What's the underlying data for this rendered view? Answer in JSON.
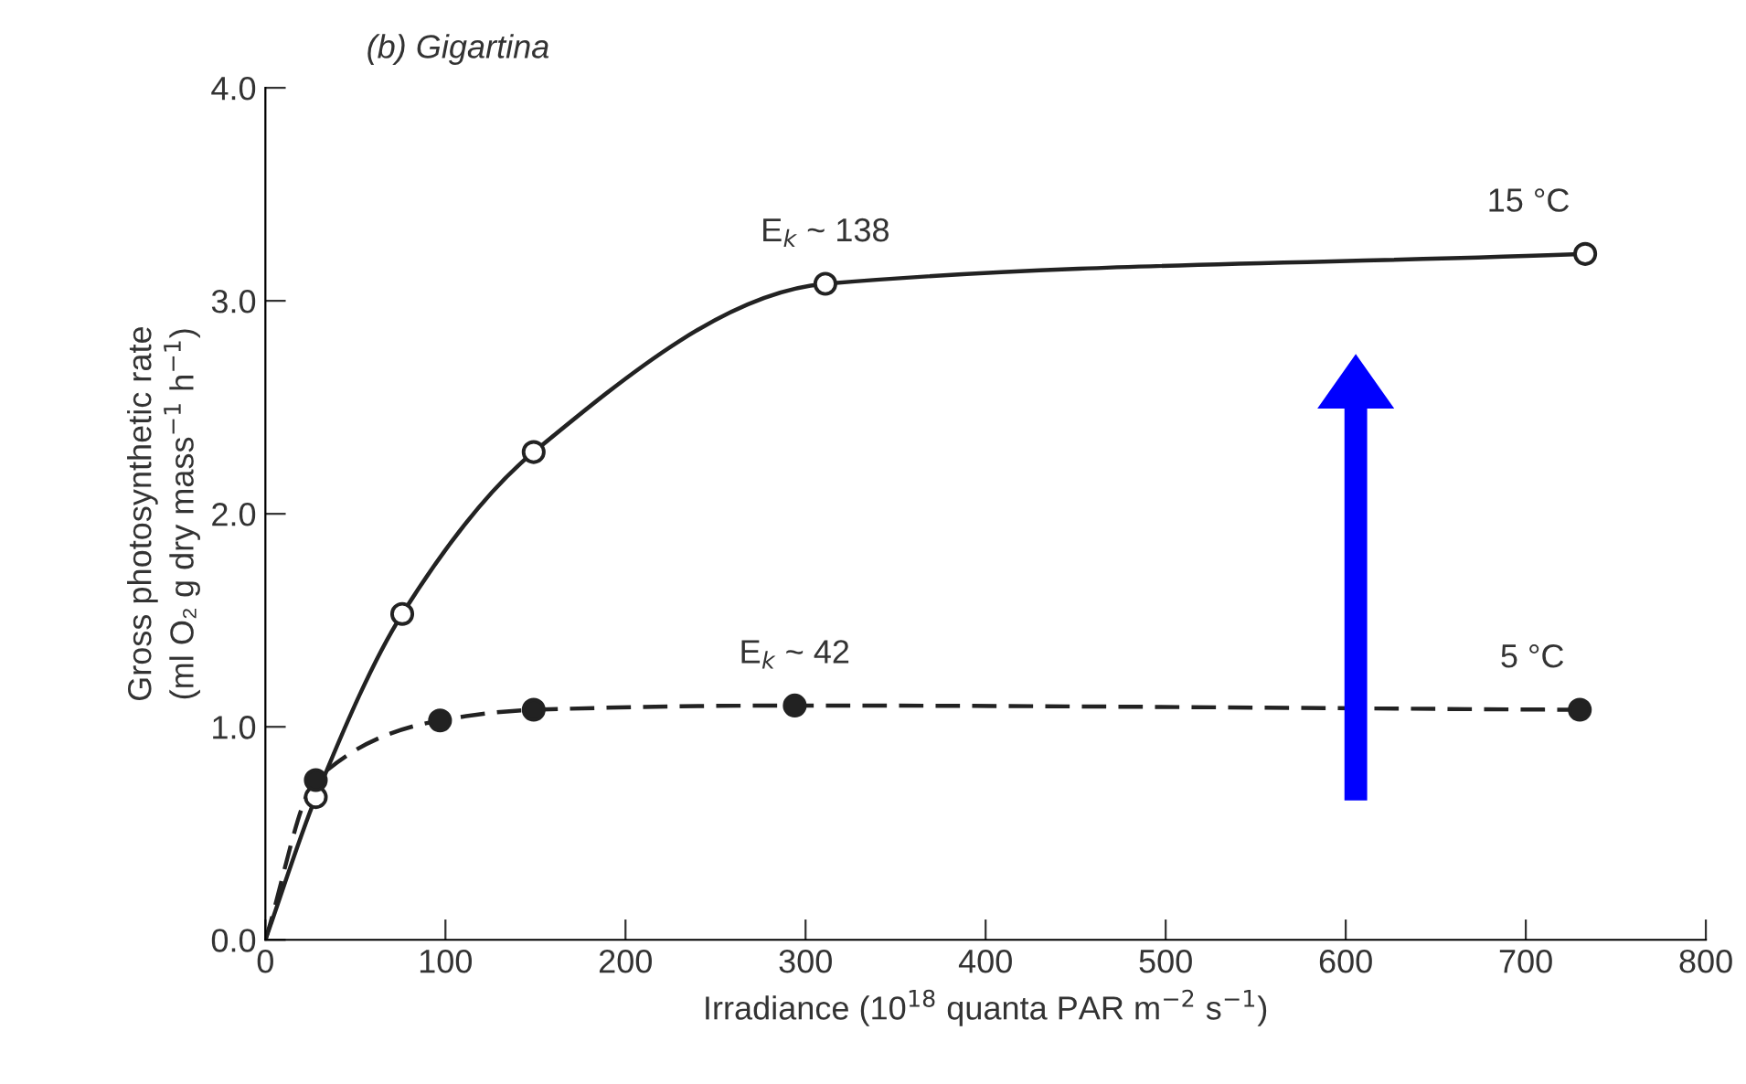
{
  "chart_data": {
    "type": "line",
    "title": "(b) Gigartina",
    "xlabel": "Irradiance (10$^{18}$ quanta PAR m$^{−2}$ s$^{−1}$)",
    "ylabel": "Gross photosynthetic rate\n(ml O₂ g dry mass$^{−1}$ h$^{−1}$)",
    "xlim": [
      0,
      800
    ],
    "xticks": [
      0,
      100,
      200,
      300,
      400,
      500,
      600,
      700,
      800
    ],
    "ylim": [
      0,
      4
    ],
    "yticks": [
      {
        "value": 0,
        "label": "0.0"
      },
      {
        "value": 1,
        "label": "1.0"
      },
      {
        "value": 2,
        "label": "2.0"
      },
      {
        "value": 3,
        "label": "3.0"
      },
      {
        "value": 4,
        "label": "4.0"
      }
    ],
    "grid": false,
    "series": [
      {
        "name": "15 °C",
        "color": "#222222",
        "marker": "circle",
        "line_style": "solid",
        "x": [
          0,
          28,
          76,
          149,
          311,
          733
        ],
        "values": [
          0,
          0.67,
          1.53,
          2.29,
          3.08,
          3.22
        ]
      },
      {
        "name": "5 °C",
        "color": "#222222",
        "marker": "circle",
        "line_style": "dashed",
        "x": [
          0,
          28,
          97,
          149,
          294,
          730
        ],
        "values": [
          0,
          0.75,
          1.03,
          1.08,
          1.1,
          1.08
        ]
      }
    ],
    "annotations": [
      {
        "text": "E$_{k}$ ~ 138",
        "x": 311,
        "y": 3.08
      },
      {
        "text": "E$_{k}$ ~ 42",
        "x": 294,
        "y": 1.1
      }
    ]
  }
}
